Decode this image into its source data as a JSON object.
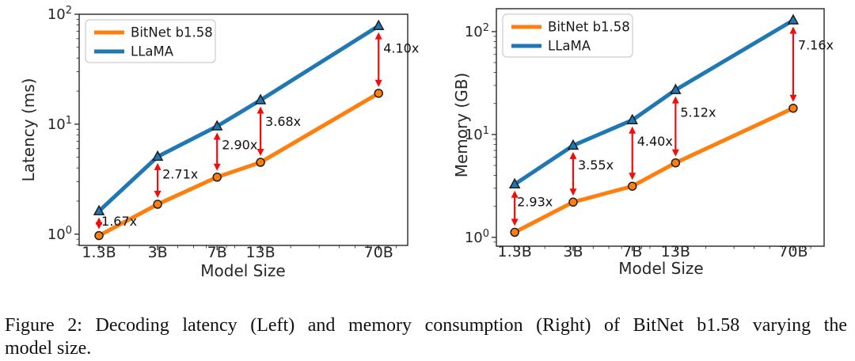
{
  "caption": {
    "line1": "Figure 2: Decoding latency (Left) and memory consumption (Right) of BitNet b1.58 varying the",
    "line2": "model size."
  },
  "colors": {
    "bitnet_orange": "#ff7f0e",
    "llama_blue": "#1f77b4",
    "annotation_red": "#f20c0c",
    "ink": "#262626",
    "legend_border": "#cccccc"
  },
  "chart_data": [
    {
      "id": "latency",
      "type": "line",
      "title": "",
      "xlabel": "Model Size",
      "ylabel": "Latency (ms)",
      "x_scale": "log",
      "y_scale": "log",
      "grid": false,
      "legend_position": "upper left",
      "categories": [
        "1.3B",
        "3B",
        "7B",
        "13B",
        "70B"
      ],
      "x": [
        1.3,
        3,
        7,
        13,
        70
      ],
      "xlim": [
        0.98,
        106
      ],
      "ylim": [
        0.79,
        100
      ],
      "y_tick_exponents": [
        0,
        1,
        2
      ],
      "series": [
        {
          "name": "BitNet b1.58",
          "color": "#ff7f0e",
          "marker": "circle",
          "values": [
            0.97,
            1.87,
            3.3,
            4.5,
            19.1
          ]
        },
        {
          "name": "LLaMA",
          "color": "#1f77b4",
          "marker": "triangle-up",
          "values": [
            1.62,
            5.07,
            9.57,
            16.56,
            78.3
          ]
        }
      ],
      "annotations": [
        {
          "x": 1.3,
          "label": "1.67x"
        },
        {
          "x": 3,
          "label": "2.71x"
        },
        {
          "x": 7,
          "label": "2.90x"
        },
        {
          "x": 13,
          "label": "3.68x"
        },
        {
          "x": 70,
          "label": "4.10x"
        }
      ]
    },
    {
      "id": "memory",
      "type": "line",
      "title": "",
      "xlabel": "Model Size",
      "ylabel": "Memory (GB)",
      "x_scale": "log",
      "y_scale": "log",
      "grid": false,
      "legend_position": "upper left",
      "categories": [
        "1.3B",
        "3B",
        "7B",
        "13B",
        "70B"
      ],
      "x": [
        1.3,
        3,
        7,
        13,
        70
      ],
      "xlim": [
        1.0,
        109
      ],
      "ylim": [
        0.82,
        167
      ],
      "y_tick_exponents": [
        0,
        1,
        2
      ],
      "series": [
        {
          "name": "BitNet b1.58",
          "color": "#ff7f0e",
          "marker": "circle",
          "values": [
            1.12,
            2.2,
            3.14,
            5.3,
            18.0
          ]
        },
        {
          "name": "LLaMA",
          "color": "#1f77b4",
          "marker": "triangle-up",
          "values": [
            3.28,
            7.81,
            13.8,
            27.1,
            128.9
          ]
        }
      ],
      "annotations": [
        {
          "x": 1.3,
          "label": "2.93x"
        },
        {
          "x": 3,
          "label": "3.55x"
        },
        {
          "x": 7,
          "label": "4.40x"
        },
        {
          "x": 13,
          "label": "5.12x"
        },
        {
          "x": 70,
          "label": "7.16x"
        }
      ]
    }
  ]
}
